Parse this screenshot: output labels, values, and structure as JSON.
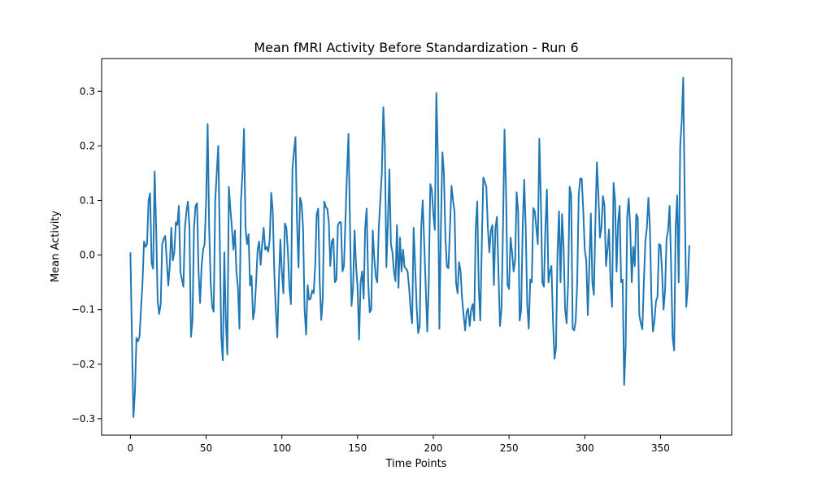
{
  "chart_data": {
    "type": "line",
    "title": "Mean fMRI Activity Before Standardization - Run 6",
    "xlabel": "Time Points",
    "ylabel": "Mean Activity",
    "xlim": [
      -19,
      397
    ],
    "ylim": [
      -0.33,
      0.36
    ],
    "xticks": [
      0,
      50,
      100,
      150,
      200,
      250,
      300,
      350
    ],
    "yticks": [
      -0.3,
      -0.2,
      -0.1,
      0.0,
      0.1,
      0.2,
      0.3
    ],
    "ytick_labels": [
      "−0.3",
      "−0.2",
      "−0.1",
      "0.0",
      "0.1",
      "0.2",
      "0.3"
    ],
    "grid": false,
    "series": [
      {
        "color": "#1f77b4",
        "y": [
          0.005,
          -0.15,
          -0.297,
          -0.25,
          -0.152,
          -0.158,
          -0.15,
          -0.1,
          -0.05,
          0.025,
          0.015,
          0.02,
          0.1,
          0.113,
          -0.015,
          -0.025,
          0.153,
          0.05,
          -0.085,
          -0.108,
          -0.09,
          0.02,
          0.03,
          0.035,
          -0.01,
          -0.056,
          -0.02,
          0.05,
          -0.01,
          0.005,
          0.06,
          0.055,
          0.09,
          -0.03,
          -0.045,
          -0.058,
          0.05,
          0.08,
          0.098,
          0.05,
          -0.15,
          -0.12,
          0.05,
          0.09,
          0.095,
          -0.03,
          -0.088,
          -0.02,
          0.01,
          0.02,
          0.1,
          0.24,
          0.05,
          -0.05,
          -0.095,
          -0.104,
          0.1,
          0.15,
          0.2,
          0.03,
          -0.15,
          -0.193,
          0.005,
          -0.12,
          -0.182,
          0.125,
          0.085,
          0.05,
          0.01,
          0.045,
          -0.03,
          -0.06,
          -0.135,
          0.1,
          0.15,
          0.231,
          0.05,
          0.02,
          0.038,
          -0.056,
          -0.038,
          -0.118,
          -0.1,
          -0.05,
          0.01,
          0.025,
          -0.018,
          0.02,
          0.05,
          0.01,
          0.015,
          0.006,
          0.03,
          0.114,
          0.08,
          -0.03,
          -0.1,
          -0.151,
          -0.05,
          0.028,
          -0.03,
          -0.07,
          0.058,
          0.05,
          0.005,
          -0.06,
          -0.09,
          0.158,
          0.19,
          0.216,
          0.06,
          -0.023,
          0.105,
          0.095,
          0.05,
          -0.1,
          -0.146,
          -0.055,
          -0.082,
          -0.08,
          -0.065,
          -0.07,
          -0.02,
          0.075,
          0.085,
          -0.05,
          -0.119,
          -0.08,
          0.098,
          0.088,
          0.085,
          0.06,
          -0.02,
          0.025,
          0.03,
          -0.05,
          -0.045,
          0.055,
          0.06,
          0.06,
          -0.03,
          -0.02,
          0.065,
          0.15,
          0.222,
          0.05,
          -0.093,
          -0.06,
          0.045,
          -0.02,
          -0.06,
          -0.155,
          -0.05,
          -0.03,
          -0.08,
          0.05,
          0.085,
          -0.05,
          -0.105,
          -0.1,
          0.045,
          -0.005,
          -0.04,
          -0.05,
          0.05,
          0.1,
          0.15,
          0.271,
          0.2,
          -0.022,
          0.06,
          0.157,
          0.02,
          0.005,
          -0.03,
          -0.048,
          0.055,
          -0.06,
          0.032,
          -0.03,
          0.01,
          -0.022,
          -0.025,
          -0.03,
          -0.06,
          -0.1,
          -0.125,
          0.05,
          -0.02,
          -0.095,
          -0.143,
          -0.13,
          0.05,
          0.1,
          0.02,
          -0.06,
          -0.14,
          -0.05,
          0.13,
          0.12,
          0.075,
          0.046,
          0.297,
          0.18,
          -0.135,
          0.05,
          0.188,
          0.15,
          0.03,
          -0.022,
          -0.024,
          0.05,
          0.127,
          0.1,
          0.08,
          -0.05,
          -0.07,
          -0.013,
          -0.03,
          -0.08,
          -0.11,
          -0.138,
          -0.104,
          -0.098,
          -0.13,
          -0.1,
          -0.09,
          -0.12,
          0.05,
          0.098,
          -0.06,
          -0.12,
          0.02,
          0.142,
          0.134,
          0.125,
          0.05,
          0.005,
          0.045,
          0.055,
          -0.055,
          0.05,
          0.07,
          -0.03,
          -0.13,
          -0.1,
          0.05,
          0.23,
          0.12,
          -0.055,
          -0.062,
          0.032,
          0.005,
          -0.03,
          -0.01,
          0.115,
          0.08,
          -0.12,
          -0.1,
          0.05,
          0.138,
          0.05,
          -0.09,
          -0.135,
          -0.045,
          -0.05,
          0.086,
          0.08,
          0.05,
          0.02,
          0.213,
          0.1,
          -0.05,
          -0.058,
          0.05,
          0.12,
          -0.05,
          -0.03,
          -0.02,
          -0.12,
          -0.19,
          -0.17,
          0.005,
          0.08,
          -0.05,
          0.075,
          0.015,
          -0.1,
          -0.125,
          -0.05,
          0.125,
          0.11,
          -0.135,
          -0.138,
          -0.12,
          -0.05,
          0.11,
          0.14,
          0.14,
          0.08,
          0.01,
          -0.01,
          -0.11,
          -0.02,
          0.076,
          -0.05,
          -0.073,
          0.06,
          0.17,
          0.11,
          0.032,
          0.05,
          0.108,
          0.09,
          -0.02,
          0.01,
          0.047,
          -0.05,
          -0.095,
          0.132,
          0.1,
          -0.03,
          0.06,
          0.09,
          -0.05,
          -0.045,
          -0.238,
          -0.165,
          0.07,
          0.104,
          0.05,
          -0.05,
          0.015,
          -0.02,
          0.075,
          0.068,
          -0.11,
          -0.125,
          -0.136,
          -0.05,
          0.025,
          0.05,
          0.105,
          0.05,
          -0.08,
          -0.14,
          -0.12,
          -0.085,
          -0.077,
          0.02,
          0.018,
          -0.03,
          -0.1,
          -0.065,
          0.03,
          0.045,
          0.09,
          -0.02,
          -0.15,
          -0.175,
          0.05,
          0.109,
          -0.05,
          0.2,
          0.245,
          0.325,
          0.1,
          -0.095,
          -0.06,
          0.018
        ]
      }
    ]
  }
}
